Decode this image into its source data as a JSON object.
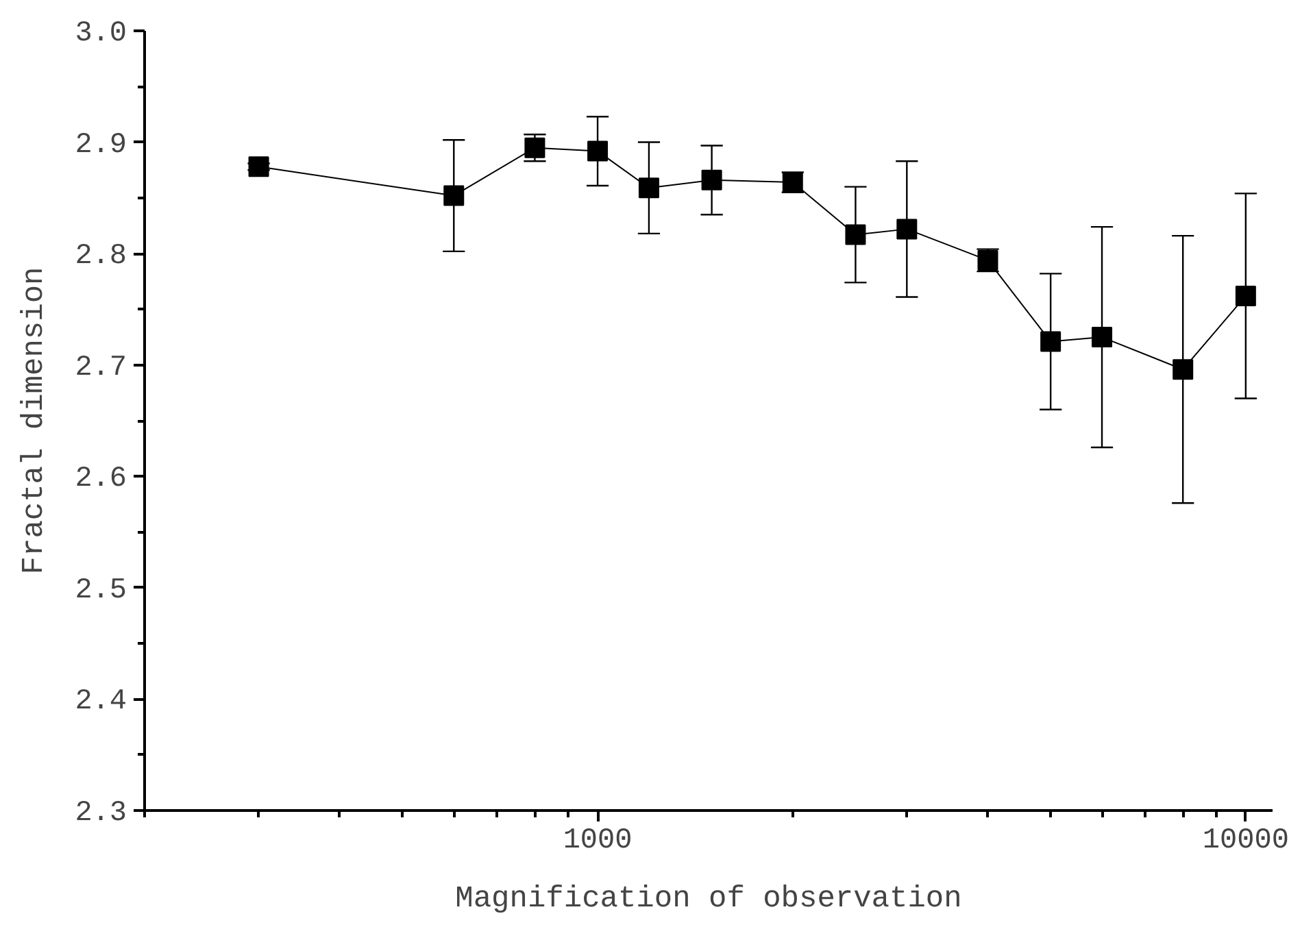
{
  "chart_data": {
    "type": "line",
    "xlabel": "Magnification of observation",
    "ylabel": "Fractal dimension",
    "log": "x",
    "marker": "square",
    "line_style": "solid",
    "x": [
      300,
      600,
      800,
      1000,
      1200,
      1500,
      2000,
      2500,
      3000,
      4000,
      5000,
      6000,
      8000,
      10000
    ],
    "series": [
      {
        "color": "#000000",
        "values": [
          2.878,
          2.852,
          2.895,
          2.892,
          2.859,
          2.866,
          2.864,
          2.817,
          2.822,
          2.794,
          2.721,
          2.725,
          2.696,
          2.762
        ],
        "errors": [
          0.003,
          0.05,
          0.012,
          0.031,
          0.041,
          0.031,
          0.009,
          0.043,
          0.061,
          0.01,
          0.061,
          0.099,
          0.12,
          0.092
        ]
      }
    ],
    "xlim": [
      200,
      11000
    ],
    "xticks": [
      {
        "value": 200,
        "label": null
      },
      {
        "value": 300,
        "label": null
      },
      {
        "value": 400,
        "label": null
      },
      {
        "value": 500,
        "label": null
      },
      {
        "value": 600,
        "label": null
      },
      {
        "value": 700,
        "label": null
      },
      {
        "value": 800,
        "label": null
      },
      {
        "value": 900,
        "label": null
      },
      1000,
      {
        "value": 2000,
        "label": null
      },
      {
        "value": 3000,
        "label": null
      },
      {
        "value": 4000,
        "label": null
      },
      {
        "value": 5000,
        "label": null
      },
      {
        "value": 6000,
        "label": null
      },
      {
        "value": 7000,
        "label": null
      },
      {
        "value": 8000,
        "label": null
      },
      {
        "value": 9000,
        "label": null
      },
      10000
    ],
    "ylim": [
      2.3,
      3.0
    ],
    "yticks": [
      {
        "value": 2.3,
        "label": "2.3"
      },
      {
        "value": 2.35,
        "label": null
      },
      {
        "value": 2.4,
        "label": "2.4"
      },
      {
        "value": 2.45,
        "label": null
      },
      {
        "value": 2.5,
        "label": "2.5"
      },
      {
        "value": 2.55,
        "label": null
      },
      {
        "value": 2.6,
        "label": "2.6"
      },
      {
        "value": 2.65,
        "label": null
      },
      {
        "value": 2.7,
        "label": "2.7"
      },
      {
        "value": 2.75,
        "label": null
      },
      {
        "value": 2.8,
        "label": "2.8"
      },
      {
        "value": 2.85,
        "label": null
      },
      {
        "value": 2.9,
        "label": "2.9"
      },
      {
        "value": 2.95,
        "label": null
      },
      {
        "value": 3.0,
        "label": "3.0"
      }
    ]
  }
}
